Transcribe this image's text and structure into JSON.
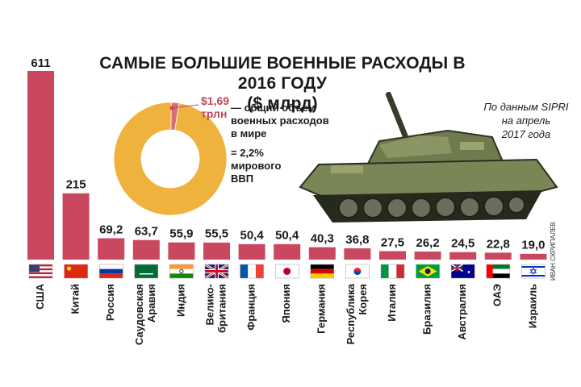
{
  "title": "САМЫЕ БОЛЬШИЕ ВОЕННЫЕ РАСХОДЫ В 2016 ГОДУ",
  "unit": "($ млрд)",
  "source": [
    "По данным SIPRI",
    "на апрель",
    "2017 года"
  ],
  "author": "ИВАН СКРИПАЛЕВ",
  "world_total": {
    "value_lines": [
      "$1,69",
      "трлн"
    ],
    "description_lines": [
      "— общий объем",
      "военных расходов",
      "в мире"
    ],
    "gdp_lines": [
      "= 2,2%",
      "мирового",
      "ВВП"
    ]
  },
  "colors": {
    "bar": "#c9485f",
    "donut": "#efb33d",
    "donut_share": "#d96b7a",
    "text": "#1a1a1a"
  },
  "chart_data": [
    {
      "type": "bar",
      "categories": [
        "США",
        "Китай",
        "Россия",
        "Саудовская Аравия",
        "Индия",
        "Велико-британия",
        "Франция",
        "Япония",
        "Германия",
        "Республика Корея",
        "Италия",
        "Бразилия",
        "Австралия",
        "ОАЭ",
        "Израиль"
      ],
      "category_lines": [
        [
          "США"
        ],
        [
          "Китай"
        ],
        [
          "Россия"
        ],
        [
          "Саудовская",
          "Аравия"
        ],
        [
          "Индия"
        ],
        [
          "Велико-",
          "британия"
        ],
        [
          "Франция"
        ],
        [
          "Япония"
        ],
        [
          "Германия"
        ],
        [
          "Республика",
          "Корея"
        ],
        [
          "Италия"
        ],
        [
          "Бразилия"
        ],
        [
          "Австралия"
        ],
        [
          "ОАЭ"
        ],
        [
          "Израиль"
        ]
      ],
      "values": [
        611,
        215,
        69.2,
        63.7,
        55.9,
        55.5,
        50.4,
        50.4,
        40.3,
        36.8,
        27.5,
        26.2,
        24.5,
        22.8,
        19.0
      ],
      "value_labels": [
        "611",
        "215",
        "69,2",
        "63,7",
        "55,9",
        "55,5",
        "50,4",
        "50,4",
        "40,3",
        "36,8",
        "27,5",
        "26,2",
        "24,5",
        "22,8",
        "19,0"
      ],
      "flags": [
        "usa-flag",
        "china-flag",
        "russia-flag",
        "saudi-arabia-flag",
        "india-flag",
        "uk-flag",
        "france-flag",
        "japan-flag",
        "germany-flag",
        "south-korea-flag",
        "italy-flag",
        "brazil-flag",
        "australia-flag",
        "uae-flag",
        "israel-flag"
      ],
      "ylim": [
        0,
        611
      ]
    },
    {
      "type": "pie",
      "donut": true,
      "values": [
        2.2,
        97.8
      ],
      "series": [
        {
          "name": "ВВП",
          "value": 2.2
        }
      ]
    }
  ]
}
